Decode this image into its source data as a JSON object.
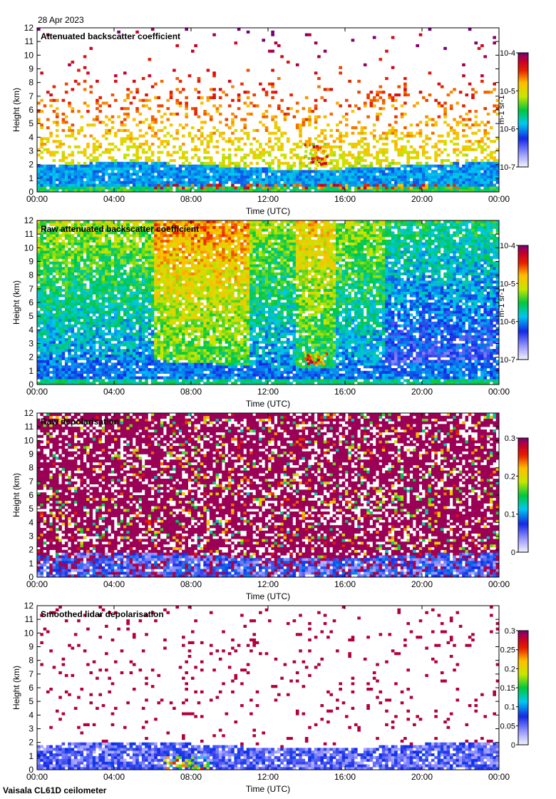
{
  "date": "28 Apr 2023",
  "instrument": "Vaisala CL61D ceilometer",
  "chart_data": [
    {
      "type": "heatmap",
      "title": "Attenuated backscatter coefficient",
      "xlabel": "Time (UTC)",
      "ylabel": "Height (km)",
      "x_ticks": [
        "00:00",
        "04:00",
        "08:00",
        "12:00",
        "16:00",
        "20:00",
        "00:00"
      ],
      "y_ticks": [
        "0",
        "1",
        "2",
        "3",
        "4",
        "5",
        "6",
        "7",
        "8",
        "9",
        "10",
        "11",
        "12"
      ],
      "xlim": [
        0,
        24
      ],
      "ylim": [
        0,
        12
      ],
      "colorbar": {
        "scale": "log",
        "range": [
          1e-07,
          0.0001
        ],
        "ticks": [
          "10-7",
          "10-6",
          "10-5",
          "10-4"
        ],
        "unit": "m-1 sr-1"
      },
      "noise": "sparse",
      "features": {
        "boundary_layer_top_km": 1.9,
        "cloud_base_km": 0.4,
        "elevated_layer_km": [
          2.0,
          3.6
        ]
      }
    },
    {
      "type": "heatmap",
      "title": "Raw attenuated backscatter coefficient",
      "xlabel": "Time (UTC)",
      "ylabel": "Height (km)",
      "x_ticks": [
        "00:00",
        "04:00",
        "08:00",
        "12:00",
        "16:00",
        "20:00",
        "00:00"
      ],
      "y_ticks": [
        "0",
        "1",
        "2",
        "3",
        "4",
        "5",
        "6",
        "7",
        "8",
        "9",
        "10",
        "11",
        "12"
      ],
      "xlim": [
        0,
        24
      ],
      "ylim": [
        0,
        12
      ],
      "colorbar": {
        "scale": "log",
        "range": [
          1e-07,
          0.0001
        ],
        "ticks": [
          "10-7",
          "10-6",
          "10-5",
          "10-4"
        ],
        "unit": "m-1 sr-1"
      },
      "noise": "dense",
      "features": {
        "boundary_layer_top_km": 1.5,
        "cloud_base_km": 0.4,
        "elevated_layer_km": [
          1.5,
          2.6
        ]
      }
    },
    {
      "type": "heatmap",
      "title": "Raw depolarisation",
      "xlabel": "Time (UTC)",
      "ylabel": "Height (km)",
      "x_ticks": [
        "00:00",
        "04:00",
        "08:00",
        "12:00",
        "16:00",
        "20:00",
        "00:00"
      ],
      "y_ticks": [
        "0",
        "1",
        "2",
        "3",
        "4",
        "5",
        "6",
        "7",
        "8",
        "9",
        "10",
        "11",
        "12"
      ],
      "xlim": [
        0,
        24
      ],
      "ylim": [
        0,
        12
      ],
      "colorbar": {
        "scale": "linear",
        "range": [
          0,
          0.3
        ],
        "ticks": [
          "0",
          "0.1",
          "0.2",
          "0.3"
        ],
        "unit": ""
      },
      "noise": "depol-raw",
      "features": {
        "boundary_layer_top_km": 1.6
      }
    },
    {
      "type": "heatmap",
      "title": "Smoothed lidar depolarisation",
      "xlabel": "Time (UTC)",
      "ylabel": "Height (km)",
      "x_ticks": [
        "00:00",
        "04:00",
        "08:00",
        "12:00",
        "16:00",
        "20:00",
        "00:00"
      ],
      "y_ticks": [
        "0",
        "1",
        "2",
        "3",
        "4",
        "5",
        "6",
        "7",
        "8",
        "9",
        "10",
        "11",
        "12"
      ],
      "xlim": [
        0,
        24
      ],
      "ylim": [
        0,
        12
      ],
      "colorbar": {
        "scale": "linear",
        "range": [
          0,
          0.3
        ],
        "ticks": [
          "0",
          "0.05",
          "0.1",
          "0.15",
          "0.2",
          "0.25",
          "0.3"
        ],
        "unit": ""
      },
      "noise": "depol-smooth",
      "features": {
        "boundary_layer_top_km": 1.8
      }
    }
  ]
}
